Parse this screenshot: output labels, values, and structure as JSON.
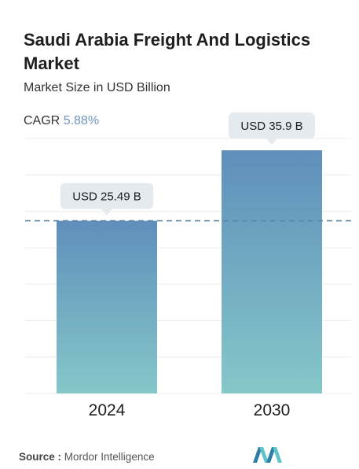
{
  "header": {
    "title": "Saudi Arabia Freight And Logistics Market",
    "subtitle": "Market Size in USD Billion",
    "cagr_label": "CAGR",
    "cagr_value": "5.88%"
  },
  "chart_data": {
    "type": "bar",
    "categories": [
      "2024",
      "2030"
    ],
    "values": [
      25.49,
      35.9
    ],
    "data_labels": [
      "USD 25.49 B",
      "USD 35.9 B"
    ],
    "title": "Saudi Arabia Freight And Logistics Market",
    "ylabel": "Market Size in USD Billion",
    "ylim": [
      0,
      35.9
    ],
    "reference_line": 25.49,
    "grid": true
  },
  "footer": {
    "source_label": "Source :",
    "source_name": "Mordor Intelligence"
  },
  "colors": {
    "bar_top": "#5f8fbb",
    "bar_bottom": "#86c7c9",
    "label_bg": "#e4eaed",
    "reference_line": "#5b86a3",
    "cagr_value": "#6e93bf"
  }
}
